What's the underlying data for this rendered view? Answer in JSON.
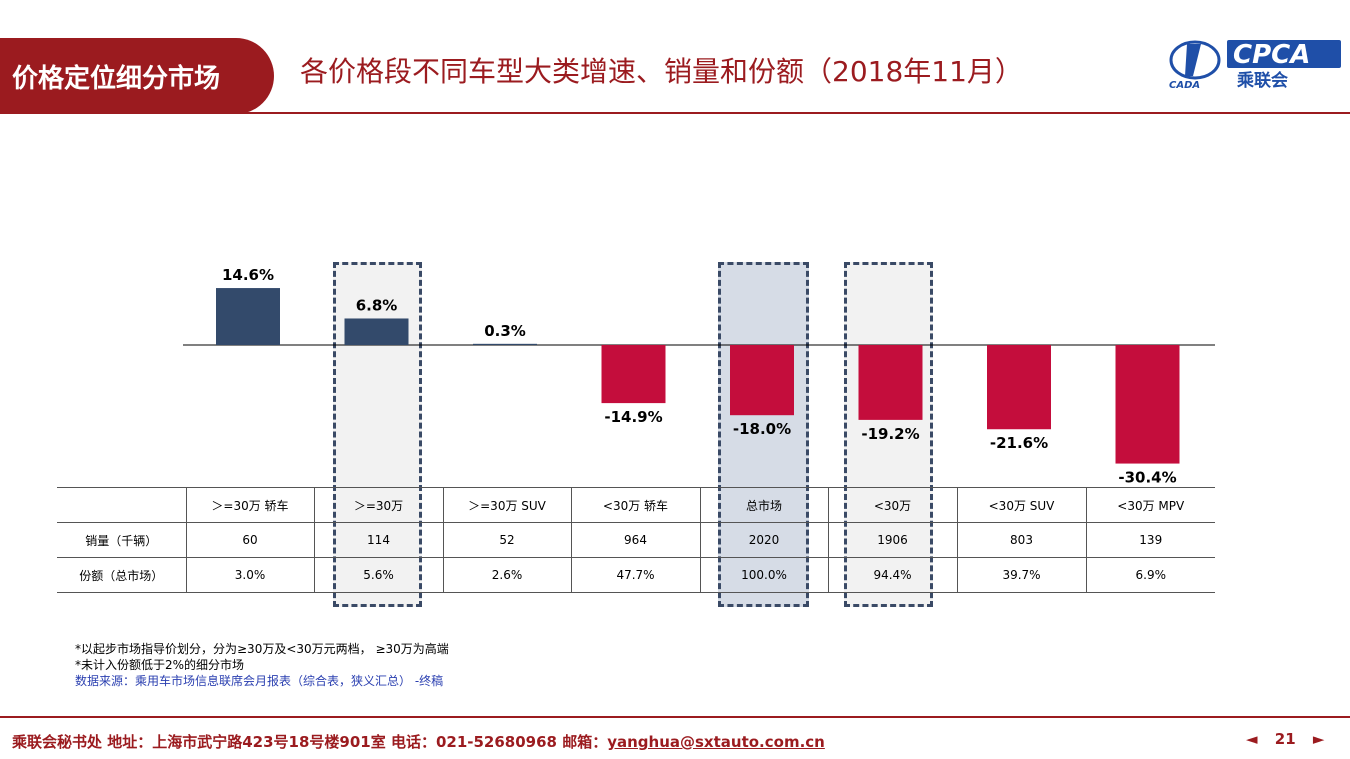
{
  "header": {
    "badge": "价格定位细分市场",
    "title": "各价格段不同车型大类增速、销量和份额（2018年11月）",
    "logo_text": "CPCA",
    "logo_sub": "乘联会",
    "logo_left": "CADA"
  },
  "chart_data": {
    "type": "bar",
    "title": "",
    "categories": [
      "＞=30万 轿车",
      "＞=30万",
      "＞=30万 SUV",
      "<30万 轿车",
      "总市场",
      "<30万",
      "<30万 SUV",
      "<30万 MPV"
    ],
    "values": [
      14.6,
      6.8,
      0.3,
      -14.9,
      -18.0,
      -19.2,
      -21.6,
      -30.4
    ],
    "value_labels": [
      "14.6%",
      "6.8%",
      "0.3%",
      "-14.9%",
      "-18.0%",
      "-19.2%",
      "-21.6%",
      "-30.4%"
    ],
    "ylim": [
      -32,
      16
    ],
    "grid": false,
    "colors": {
      "positive": "#334a6b",
      "negative": "#c40d3c"
    },
    "highlight_categories": [
      1,
      4,
      5
    ]
  },
  "table": {
    "rows": [
      {
        "label": "",
        "cells": [
          "＞=30万 轿车",
          "＞=30万",
          "＞=30万 SUV",
          "<30万 轿车",
          "总市场",
          "<30万",
          "<30万 SUV",
          "<30万 MPV"
        ]
      },
      {
        "label": "销量（千辆）",
        "cells": [
          "60",
          "114",
          "52",
          "964",
          "2020",
          "1906",
          "803",
          "139"
        ]
      },
      {
        "label": "份额（总市场）",
        "cells": [
          "3.0%",
          "5.6%",
          "2.6%",
          "47.7%",
          "100.0%",
          "94.4%",
          "39.7%",
          "6.9%"
        ]
      }
    ]
  },
  "notes": {
    "line1": "*以起步市场指导价划分，分为≥30万及<30万元两档，  ≥30万为高端",
    "line2": "*未计入份额低于2%的细分市场",
    "source": "数据来源：乘用车市场信息联席会月报表（综合表，狭义汇总） -终稿"
  },
  "footer": {
    "text": "乘联会秘书处  地址：上海市武宁路423号18号楼901室  电话：021-52680968  邮箱：",
    "email": "yanghua@sxtauto.com.cn",
    "page": "21",
    "prev": "◄",
    "next": "►"
  }
}
